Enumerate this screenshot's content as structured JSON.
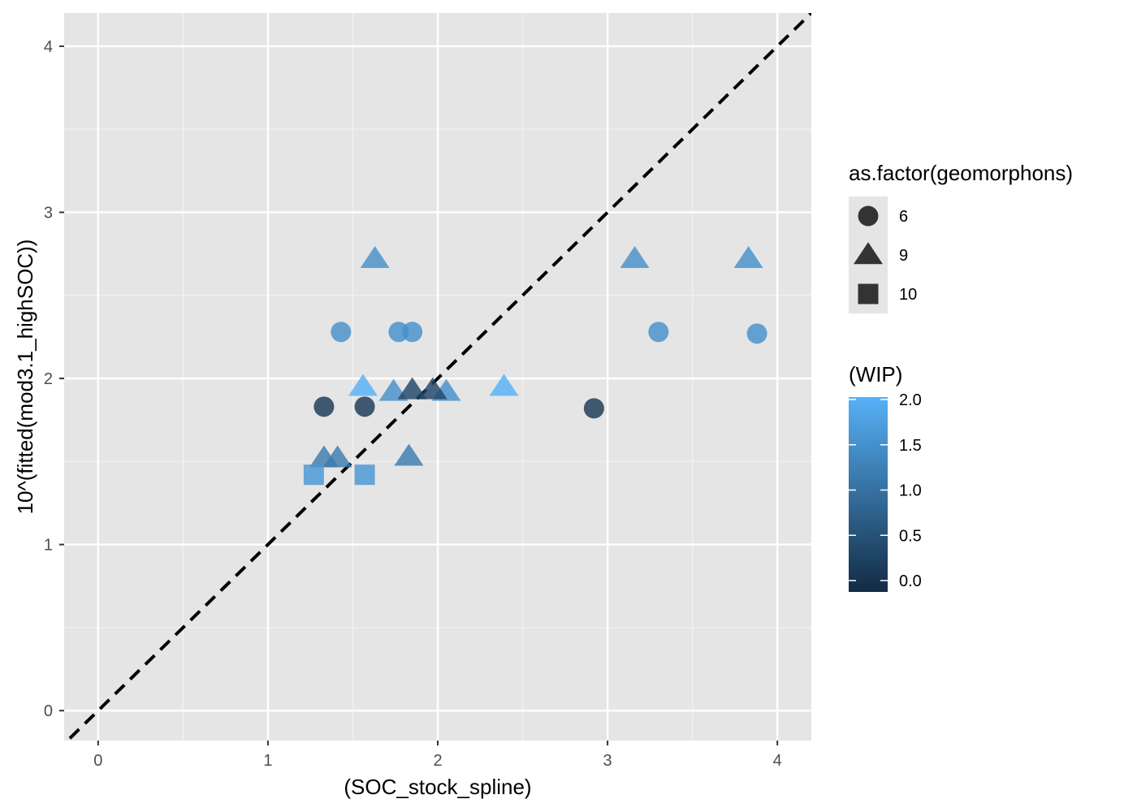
{
  "chart_data": {
    "type": "scatter",
    "xlabel": "(SOC_stock_spline)",
    "ylabel": "10^(fitted(mod3.1_highSOC))",
    "xlim": [
      -0.2,
      4.2
    ],
    "ylim": [
      -0.18,
      4.2
    ],
    "x_ticks": [
      0,
      1,
      2,
      3,
      4
    ],
    "y_ticks": [
      0,
      1,
      2,
      3,
      4
    ],
    "grid": true,
    "panel_background": "#e5e5e5",
    "reference_line": {
      "slope": 1,
      "intercept": 0,
      "style": "dashed",
      "color": "#000000"
    },
    "points": [
      {
        "x": 1.33,
        "y": 1.83,
        "shape": "circle",
        "wip": 0.2
      },
      {
        "x": 1.57,
        "y": 1.83,
        "shape": "circle",
        "wip": 0.2
      },
      {
        "x": 2.92,
        "y": 1.82,
        "shape": "circle",
        "wip": 0.2
      },
      {
        "x": 1.43,
        "y": 2.28,
        "shape": "circle",
        "wip": 1.5
      },
      {
        "x": 1.77,
        "y": 2.28,
        "shape": "circle",
        "wip": 1.5
      },
      {
        "x": 1.85,
        "y": 2.28,
        "shape": "circle",
        "wip": 1.5
      },
      {
        "x": 3.3,
        "y": 2.28,
        "shape": "circle",
        "wip": 1.5
      },
      {
        "x": 3.88,
        "y": 2.27,
        "shape": "circle",
        "wip": 1.5
      },
      {
        "x": 1.63,
        "y": 2.72,
        "shape": "triangle",
        "wip": 1.5
      },
      {
        "x": 3.16,
        "y": 2.72,
        "shape": "triangle",
        "wip": 1.5
      },
      {
        "x": 3.83,
        "y": 2.72,
        "shape": "triangle",
        "wip": 1.5
      },
      {
        "x": 1.56,
        "y": 1.95,
        "shape": "triangle",
        "wip": 2.0
      },
      {
        "x": 2.39,
        "y": 1.95,
        "shape": "triangle",
        "wip": 2.0
      },
      {
        "x": 1.74,
        "y": 1.92,
        "shape": "triangle",
        "wip": 1.5
      },
      {
        "x": 2.05,
        "y": 1.92,
        "shape": "triangle",
        "wip": 1.5
      },
      {
        "x": 1.85,
        "y": 1.93,
        "shape": "triangle",
        "wip": 0.4
      },
      {
        "x": 1.97,
        "y": 1.93,
        "shape": "triangle",
        "wip": 0.4
      },
      {
        "x": 1.33,
        "y": 1.52,
        "shape": "triangle",
        "wip": 1.2
      },
      {
        "x": 1.41,
        "y": 1.52,
        "shape": "triangle",
        "wip": 1.2
      },
      {
        "x": 1.83,
        "y": 1.53,
        "shape": "triangle",
        "wip": 1.2
      },
      {
        "x": 1.27,
        "y": 1.42,
        "shape": "square",
        "wip": 1.6
      },
      {
        "x": 1.57,
        "y": 1.42,
        "shape": "square",
        "wip": 1.6
      }
    ],
    "legends": {
      "shape": {
        "title": "as.factor(geomorphons)",
        "items": [
          {
            "label": "6",
            "shape": "circle"
          },
          {
            "label": "9",
            "shape": "triangle"
          },
          {
            "label": "10",
            "shape": "square"
          }
        ]
      },
      "color": {
        "title": "(WIP)",
        "range": [
          0,
          2
        ],
        "ticks": [
          "2.0",
          "1.5",
          "1.0",
          "0.5",
          "0.0"
        ],
        "tick_values": [
          2.0,
          1.5,
          1.0,
          0.5,
          0.0
        ],
        "low_color": "#132b43",
        "high_color": "#56b1f7"
      }
    }
  }
}
